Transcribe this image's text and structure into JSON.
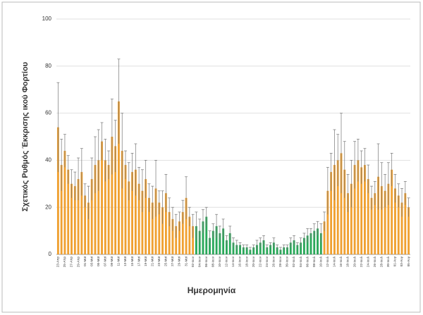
{
  "chart_data": {
    "type": "bar",
    "ylabel": "Σχετικός Ρυθμός Έκκρισης ικού Φορτίου",
    "xlabel": "Ημερομηνία",
    "categories": [
      "23-Απρ",
      null,
      "25-Απρ",
      null,
      "27-Απρ",
      null,
      "29-Απρ",
      null,
      "01-Μαϊ",
      null,
      "03-Μαϊ",
      null,
      "05-Μαϊ",
      null,
      "07-Μαϊ",
      null,
      "09-Μαϊ",
      null,
      "11-Μαϊ",
      null,
      "13-Μαϊ",
      null,
      "15-Μαϊ",
      null,
      "17-Μαϊ",
      null,
      "19-Μαϊ",
      null,
      "21-Μαϊ",
      null,
      "23-Μαϊ",
      null,
      "25-Μαϊ",
      null,
      "27-Μαϊ",
      null,
      "29-Μαϊ",
      null,
      "31-Μαϊ",
      null,
      "02-Ιουν",
      null,
      "04-Ιουν",
      null,
      "06-Ιουν",
      null,
      "08-Ιουν",
      null,
      "10-Ιουν",
      null,
      "12-Ιουν",
      null,
      "14-Ιουν",
      null,
      "16-Ιουν",
      null,
      "18-Ιουν",
      null,
      "20-Ιουν",
      null,
      "22-Ιουν",
      null,
      "24-Ιουν",
      null,
      "26-Ιουν",
      null,
      "28-Ιουν",
      null,
      "30-Ιουν",
      null,
      "02-Ιουλ",
      null,
      "04-Ιουλ",
      null,
      "06-Ιουλ",
      null,
      "08-Ιουλ",
      null,
      "10-Ιουλ",
      null,
      "12-Ιουλ",
      null,
      "14-Ιουλ",
      null,
      "16-Ιουλ",
      null,
      "18-Ιουλ",
      null,
      "20-Ιουλ",
      null,
      "22-Ιουλ",
      null,
      "24-Ιουλ",
      null,
      "26-Ιουλ",
      null,
      "28-Ιουλ",
      null,
      "30-Ιουλ",
      null,
      "01-Αυγ",
      null,
      "03-Αυγ",
      null,
      "05-Αυγ"
    ],
    "values": [
      54,
      38,
      44,
      36,
      30,
      29,
      32,
      35,
      25,
      22,
      32,
      38,
      40,
      48,
      40,
      38,
      50,
      46,
      65,
      44,
      38,
      31,
      35,
      36,
      30,
      27,
      32,
      24,
      22,
      28,
      22,
      20,
      26,
      18,
      15,
      12,
      14,
      18,
      24,
      16,
      12,
      12,
      10,
      14,
      16,
      7,
      10,
      12,
      9,
      11,
      6,
      9,
      5,
      4,
      4,
      3,
      3,
      2,
      3,
      4,
      5,
      6,
      3,
      4,
      5,
      3,
      2,
      3,
      3,
      5,
      6,
      4,
      5,
      7,
      8,
      9,
      10,
      11,
      9,
      14,
      27,
      35,
      38,
      40,
      43,
      36,
      26,
      30,
      38,
      40,
      37,
      38,
      32,
      24,
      26,
      33,
      29,
      27,
      30,
      36,
      28,
      25,
      22,
      26,
      20
    ],
    "errors": [
      19,
      11,
      7,
      6,
      6,
      6,
      9,
      10,
      5,
      7,
      9,
      12,
      13,
      8,
      9,
      6,
      16,
      11,
      18,
      16,
      6,
      8,
      8,
      11,
      7,
      9,
      8,
      6,
      7,
      12,
      5,
      7,
      8,
      6,
      5,
      5,
      4,
      5,
      9,
      4,
      5,
      6,
      5,
      5,
      4,
      3,
      3,
      5,
      3,
      4,
      2,
      3,
      2,
      2,
      1,
      1,
      1,
      1,
      1,
      2,
      2,
      2,
      1,
      1,
      2,
      1,
      1,
      1,
      1,
      2,
      2,
      1,
      2,
      2,
      3,
      2,
      3,
      3,
      4,
      4,
      10,
      8,
      15,
      11,
      17,
      12,
      8,
      10,
      10,
      9,
      7,
      7,
      6,
      5,
      5,
      14,
      10,
      7,
      9,
      7,
      6,
      5,
      6,
      5,
      4
    ],
    "colors": [
      "#f0a030",
      "#f0a030",
      "#f0a030",
      "#f0a030",
      "#f0a030",
      "#f0a030",
      "#f0a030",
      "#f0a030",
      "#f0a030",
      "#f0a030",
      "#f0a030",
      "#f0a030",
      "#f0a030",
      "#f0a030",
      "#f0a030",
      "#f0a030",
      "#f0a030",
      "#f0a030",
      "#f0a030",
      "#f0a030",
      "#f0a030",
      "#f0a030",
      "#f0a030",
      "#f0a030",
      "#f0a030",
      "#f0a030",
      "#f0a030",
      "#f0a030",
      "#f0a030",
      "#f0a030",
      "#f0a030",
      "#f0a030",
      "#f0a030",
      "#f0a030",
      "#f0a030",
      "#f0a030",
      "#f0a030",
      "#f0a030",
      "#f0a030",
      "#f0a030",
      "#f0a030",
      "#2aa85a",
      "#2aa85a",
      "#2aa85a",
      "#2aa85a",
      "#2aa85a",
      "#2aa85a",
      "#2aa85a",
      "#2aa85a",
      "#2aa85a",
      "#2aa85a",
      "#2aa85a",
      "#2aa85a",
      "#2aa85a",
      "#2aa85a",
      "#2aa85a",
      "#2aa85a",
      "#2aa85a",
      "#2aa85a",
      "#2aa85a",
      "#2aa85a",
      "#2aa85a",
      "#2aa85a",
      "#2aa85a",
      "#2aa85a",
      "#2aa85a",
      "#2aa85a",
      "#2aa85a",
      "#2aa85a",
      "#2aa85a",
      "#2aa85a",
      "#2aa85a",
      "#2aa85a",
      "#2aa85a",
      "#2aa85a",
      "#2aa85a",
      "#2aa85a",
      "#2aa85a",
      "#2aa85a",
      "#f0a030",
      "#f0a030",
      "#f0a030",
      "#f0a030",
      "#f0a030",
      "#f0a030",
      "#f0a030",
      "#f0a030",
      "#f0a030",
      "#f0a030",
      "#f0a030",
      "#f0a030",
      "#f0a030",
      "#f0a030",
      "#f0a030",
      "#f0a030",
      "#f0a030",
      "#f0a030",
      "#f0a030",
      "#f0a030",
      "#f0a030",
      "#f0a030",
      "#f0a030",
      "#f0a030",
      "#f0a030",
      "#f0a030"
    ],
    "ylim": [
      0,
      100
    ],
    "yticks": [
      0,
      20,
      40,
      60,
      80,
      100
    ],
    "grid": true
  }
}
